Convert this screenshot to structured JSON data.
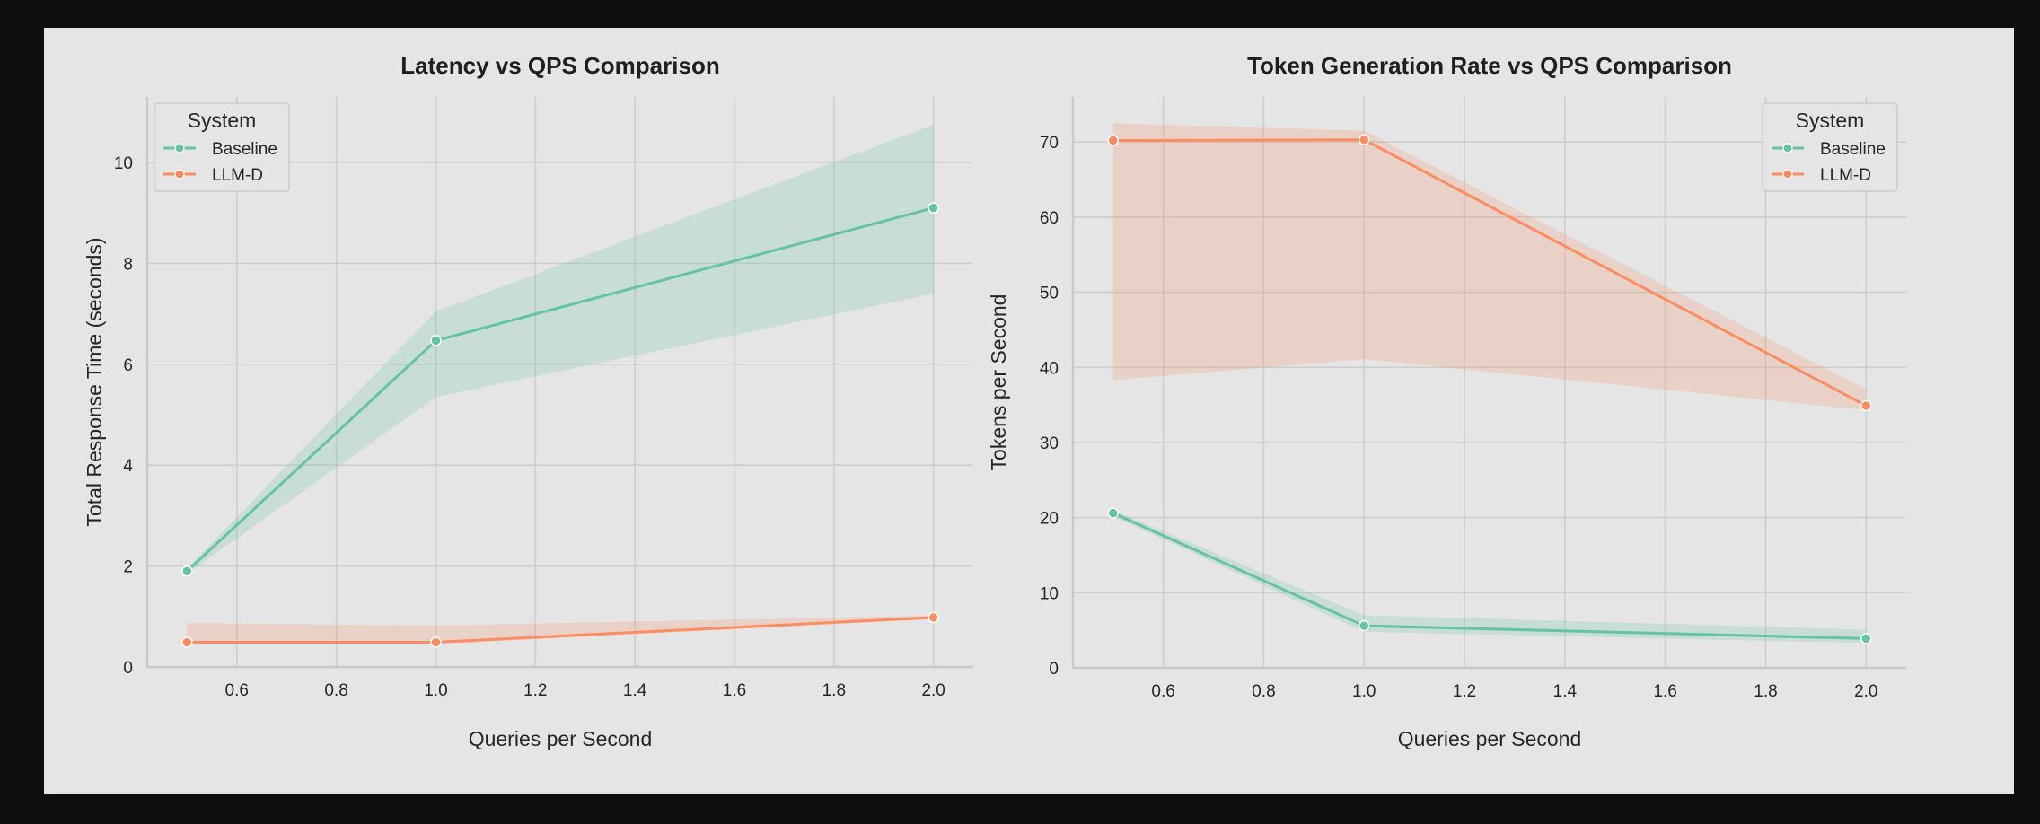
{
  "chart_data": [
    {
      "type": "line",
      "title": "Latency vs QPS Comparison",
      "xlabel": "Queries per Second",
      "ylabel": "Total Response Time (seconds)",
      "xlim": [
        0.42,
        2.08
      ],
      "ylim": [
        0,
        11.3
      ],
      "xticks": [
        0.6,
        0.8,
        1.0,
        1.2,
        1.4,
        1.6,
        1.8,
        2.0
      ],
      "yticks": [
        0,
        2,
        4,
        6,
        8,
        10
      ],
      "x": [
        0.5,
        1.0,
        2.0
      ],
      "grid": true,
      "legend": {
        "title": "System",
        "position": "top-left"
      },
      "series": [
        {
          "name": "Baseline",
          "color": "#66c2a5",
          "values": [
            1.9,
            6.47,
            9.1
          ],
          "lower": [
            1.85,
            5.35,
            7.4
          ],
          "upper": [
            1.95,
            7.05,
            10.75
          ]
        },
        {
          "name": "LLM-D",
          "color": "#fc8d62",
          "values": [
            0.49,
            0.49,
            0.98
          ],
          "lower": [
            0.45,
            0.45,
            0.95
          ],
          "upper": [
            0.87,
            0.82,
            1.02
          ]
        }
      ]
    },
    {
      "type": "line",
      "title": "Token Generation Rate vs QPS Comparison",
      "xlabel": "Queries per Second",
      "ylabel": "Tokens per Second",
      "xlim": [
        0.42,
        2.08
      ],
      "ylim": [
        0,
        76
      ],
      "xticks": [
        0.6,
        0.8,
        1.0,
        1.2,
        1.4,
        1.6,
        1.8,
        2.0
      ],
      "yticks": [
        0,
        10,
        20,
        30,
        40,
        50,
        60,
        70
      ],
      "x": [
        0.5,
        1.0,
        2.0
      ],
      "grid": true,
      "legend": {
        "title": "System",
        "position": "top-right"
      },
      "series": [
        {
          "name": "Baseline",
          "color": "#66c2a5",
          "values": [
            20.6,
            5.6,
            3.9
          ],
          "lower": [
            20.2,
            4.8,
            3.3
          ],
          "upper": [
            21.0,
            7.0,
            5.1
          ]
        },
        {
          "name": "LLM-D",
          "color": "#fc8d62",
          "values": [
            70.2,
            70.3,
            34.9
          ],
          "lower": [
            38.3,
            41.1,
            34.3
          ],
          "upper": [
            72.5,
            71.5,
            37.1
          ]
        }
      ]
    }
  ]
}
